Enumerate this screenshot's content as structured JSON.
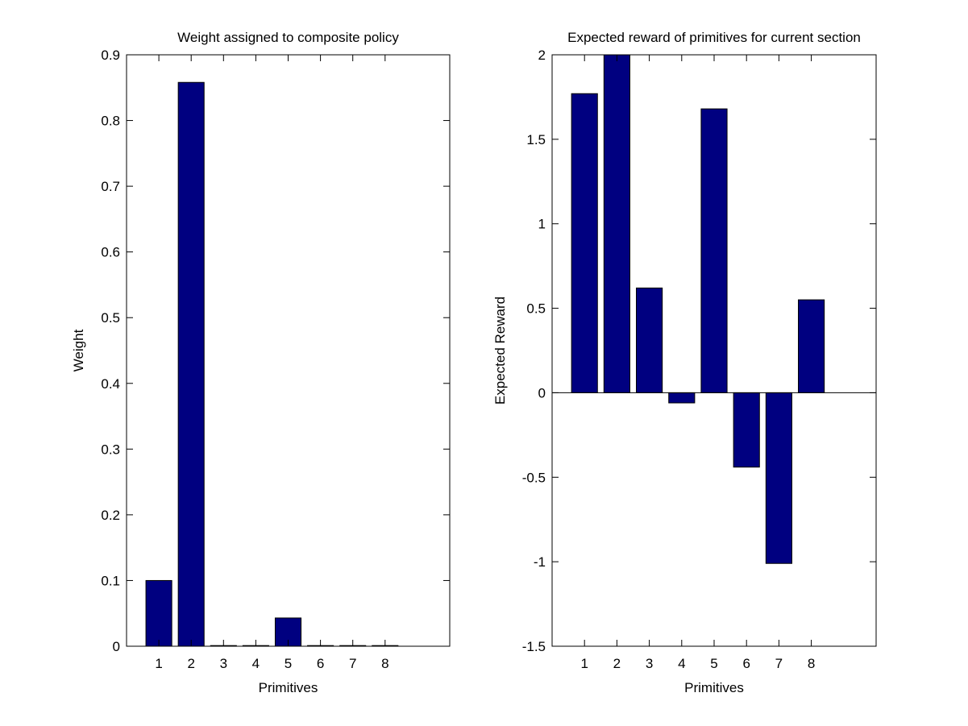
{
  "chart_data": [
    {
      "type": "bar",
      "title": "Weight assigned to composite policy",
      "xlabel": "Primitives",
      "ylabel": "Weight",
      "categories": [
        "1",
        "2",
        "3",
        "4",
        "5",
        "6",
        "7",
        "8"
      ],
      "values": [
        0.1,
        0.858,
        0.001,
        0.001,
        0.043,
        0.001,
        0.001,
        0.001
      ],
      "xlim": [
        0,
        10
      ],
      "ylim": [
        0,
        0.9
      ],
      "yticks": [
        "0",
        "0.1",
        "0.2",
        "0.3",
        "0.4",
        "0.5",
        "0.6",
        "0.7",
        "0.8",
        "0.9"
      ],
      "bar_color": "#000080",
      "grid": false,
      "zero_line": false
    },
    {
      "type": "bar",
      "title": "Expected reward of primitives for current section",
      "xlabel": "Primitives",
      "ylabel": "Expected Reward",
      "categories": [
        "1",
        "2",
        "3",
        "4",
        "5",
        "6",
        "7",
        "8"
      ],
      "values": [
        1.77,
        2.0,
        0.62,
        -0.06,
        1.68,
        -0.44,
        -1.01,
        0.55
      ],
      "xlim": [
        0,
        10
      ],
      "ylim": [
        -1.5,
        2
      ],
      "yticks": [
        "-1.5",
        "-1",
        "-0.5",
        "0",
        "0.5",
        "1",
        "1.5",
        "2"
      ],
      "bar_color": "#000080",
      "grid": false,
      "zero_line": true
    }
  ]
}
